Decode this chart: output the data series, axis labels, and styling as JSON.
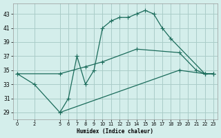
{
  "bg_color": "#d4eeeb",
  "grid_color": "#aaccc8",
  "line_color": "#1a6b5a",
  "xlabel": "Humidex (Indice chaleur)",
  "ylim": [
    28,
    44.5
  ],
  "yticks": [
    29,
    31,
    33,
    35,
    37,
    39,
    41,
    43
  ],
  "xticks": [
    0,
    2,
    5,
    6,
    7,
    8,
    9,
    10,
    11,
    12,
    13,
    14,
    15,
    16,
    17,
    18,
    19,
    20,
    21,
    22,
    23
  ],
  "xlim": [
    -0.5,
    23.5
  ],
  "line1_x": [
    5,
    6,
    7,
    8,
    9,
    10,
    11,
    12,
    13,
    14,
    15,
    16,
    17,
    18,
    22,
    23
  ],
  "line1_y": [
    29,
    31,
    37,
    33,
    35,
    41,
    42,
    42.5,
    42.5,
    43,
    43.5,
    43,
    41,
    39.5,
    34.5,
    34.5
  ],
  "line2_x": [
    0,
    5,
    8,
    10,
    14,
    19,
    21,
    22,
    23
  ],
  "line2_y": [
    34.5,
    34.5,
    35.5,
    36.2,
    38,
    37.5,
    35,
    34.5,
    34.5
  ],
  "line3_x": [
    0,
    2,
    5,
    19,
    22,
    23
  ],
  "line3_y": [
    34.5,
    33.0,
    29.0,
    35.0,
    34.5,
    34.5
  ]
}
